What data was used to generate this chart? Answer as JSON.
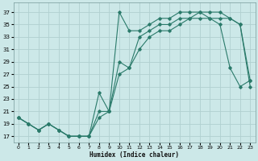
{
  "xlabel": "Humidex (Indice chaleur)",
  "ylabel": "",
  "bg_color": "#cce8e8",
  "grid_color": "#b0d0d0",
  "line_color": "#2a7a6a",
  "x_ticks": [
    0,
    1,
    2,
    3,
    4,
    5,
    6,
    7,
    8,
    9,
    10,
    11,
    12,
    13,
    14,
    15,
    16,
    17,
    18,
    19,
    20,
    21,
    22,
    23
  ],
  "y_ticks": [
    17,
    19,
    21,
    23,
    25,
    27,
    29,
    31,
    33,
    35,
    37
  ],
  "ylim": [
    16.0,
    38.5
  ],
  "xlim": [
    -0.5,
    23.5
  ],
  "line1_x": [
    0,
    1,
    2,
    3,
    4,
    5,
    6,
    7,
    8,
    9,
    10,
    11,
    12,
    13,
    14,
    15,
    16,
    17,
    18,
    19,
    20,
    21,
    22,
    23
  ],
  "line1_y": [
    20,
    19,
    18,
    19,
    18,
    17,
    17,
    17,
    24,
    21,
    37,
    34,
    34,
    35,
    36,
    36,
    37,
    37,
    37,
    36,
    35,
    28,
    25,
    26
  ],
  "line2_x": [
    0,
    1,
    2,
    3,
    4,
    5,
    6,
    7,
    8,
    9,
    10,
    11,
    12,
    13,
    14,
    15,
    16,
    17,
    18,
    19,
    20,
    21,
    22,
    23
  ],
  "line2_y": [
    20,
    19,
    18,
    19,
    18,
    17,
    17,
    17,
    21,
    21,
    29,
    28,
    33,
    34,
    35,
    35,
    36,
    36,
    37,
    37,
    37,
    36,
    35,
    25
  ],
  "line3_x": [
    0,
    1,
    2,
    3,
    4,
    5,
    6,
    7,
    8,
    9,
    10,
    11,
    12,
    13,
    14,
    15,
    16,
    17,
    18,
    19,
    20,
    21,
    22,
    23
  ],
  "line3_y": [
    20,
    19,
    18,
    19,
    18,
    17,
    17,
    17,
    20,
    21,
    27,
    28,
    31,
    33,
    34,
    34,
    35,
    36,
    36,
    36,
    36,
    36,
    35,
    26
  ]
}
